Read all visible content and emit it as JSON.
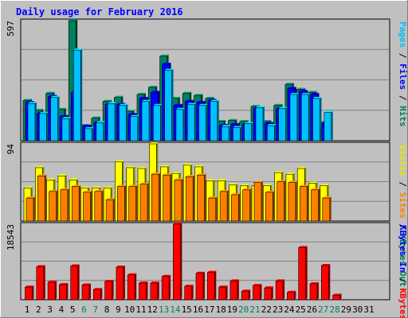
{
  "chart_data": {
    "type": "bar",
    "title": "Daily usage for February 2016",
    "days": [
      "1",
      "2",
      "3",
      "4",
      "5",
      "6",
      "7",
      "8",
      "9",
      "10",
      "11",
      "12",
      "13",
      "14",
      "15",
      "16",
      "17",
      "18",
      "19",
      "20",
      "21",
      "22",
      "23",
      "24",
      "25",
      "26",
      "27",
      "28",
      "29",
      "30",
      "31"
    ],
    "weekend_days": [
      6,
      7,
      13,
      14,
      20,
      21,
      27,
      28
    ],
    "panels": [
      {
        "id": "top",
        "max_label": "597",
        "ymax": 597,
        "right_label_parts": [
          {
            "text": "Pages",
            "color": "#00c0ff"
          },
          {
            "text": " / ",
            "color": "#000000"
          },
          {
            "text": "Files",
            "color": "#0000ff"
          },
          {
            "text": " / ",
            "color": "#000000"
          },
          {
            "text": "Hits",
            "color": "#00805c"
          }
        ],
        "series": [
          {
            "name": "Hits",
            "color": "#00805c",
            "values": [
              200,
              150,
              235,
              155,
              597,
              75,
              112,
              195,
              215,
              145,
              230,
              265,
              420,
              210,
              235,
              225,
              210,
              95,
              100,
              95,
              170,
              95,
              175,
              280,
              255,
              240,
              90,
              0,
              0,
              0,
              0
            ]
          },
          {
            "name": "Files",
            "color": "#0000ff",
            "values": [
              190,
              135,
              220,
              120,
              240,
              72,
              90,
              180,
              180,
              130,
              210,
              240,
              380,
              175,
              195,
              190,
              200,
              75,
              80,
              80,
              160,
              85,
              160,
              260,
              245,
              230,
              85,
              0,
              0,
              0,
              0
            ]
          },
          {
            "name": "Pages",
            "color": "#00c0ff",
            "values": [
              185,
              135,
              215,
              110,
              450,
              60,
              90,
              185,
              175,
              120,
              195,
              175,
              350,
              155,
              180,
              175,
              195,
              70,
              65,
              85,
              165,
              75,
              160,
              230,
              230,
              210,
              140,
              0,
              0,
              0,
              0
            ]
          }
        ]
      },
      {
        "id": "middle",
        "max_label": "94",
        "ymax": 94,
        "right_label_parts": [
          {
            "text": "Visits",
            "color": "#e8e800"
          },
          {
            "text": " / ",
            "color": "#000000"
          },
          {
            "text": "Sites",
            "color": "#ff8000"
          },
          {
            "text": " / ",
            "color": "#000000"
          },
          {
            "text": "KBytes Out",
            "color": "#00805c"
          }
        ],
        "series": [
          {
            "name": "Visits",
            "color": "#ffff00",
            "values": [
              40,
              65,
              50,
              55,
              50,
              40,
              40,
              40,
              72,
              65,
              64,
              94,
              66,
              58,
              68,
              66,
              49,
              49,
              44,
              43,
              43,
              43,
              59,
              57,
              64,
              46,
              43,
              0,
              0,
              0,
              0
            ]
          },
          {
            "name": "Sites",
            "color": "#ff8000",
            "values": [
              28,
              55,
              36,
              38,
              42,
              35,
              36,
              26,
              42,
              42,
              45,
              57,
              56,
              50,
              54,
              56,
              28,
              36,
              32,
              38,
              47,
              35,
              48,
              47,
              42,
              38,
              28,
              0,
              0,
              0,
              0
            ]
          }
        ]
      },
      {
        "id": "bottom",
        "max_label": "18543",
        "ymax": 18543,
        "right_label_parts": [
          {
            "text": "KBytes In",
            "color": "#0000ff"
          },
          {
            "text": " / ",
            "color": "#000000"
          },
          {
            "text": "KBytes F",
            "color": "#ff0000"
          }
        ],
        "series": [
          {
            "name": "KBytes F",
            "color": "#ff0000",
            "values": [
              3100,
              8100,
              4300,
              3700,
              8300,
              3600,
              2500,
              4500,
              8000,
              6100,
              4100,
              4100,
              5700,
              18543,
              3300,
              6500,
              6700,
              3100,
              4600,
              2100,
              3500,
              2900,
              4600,
              1800,
              12800,
              3900,
              8400,
              1100,
              0,
              0,
              0
            ]
          }
        ]
      }
    ],
    "grid": true,
    "legend": "right-vertical"
  }
}
